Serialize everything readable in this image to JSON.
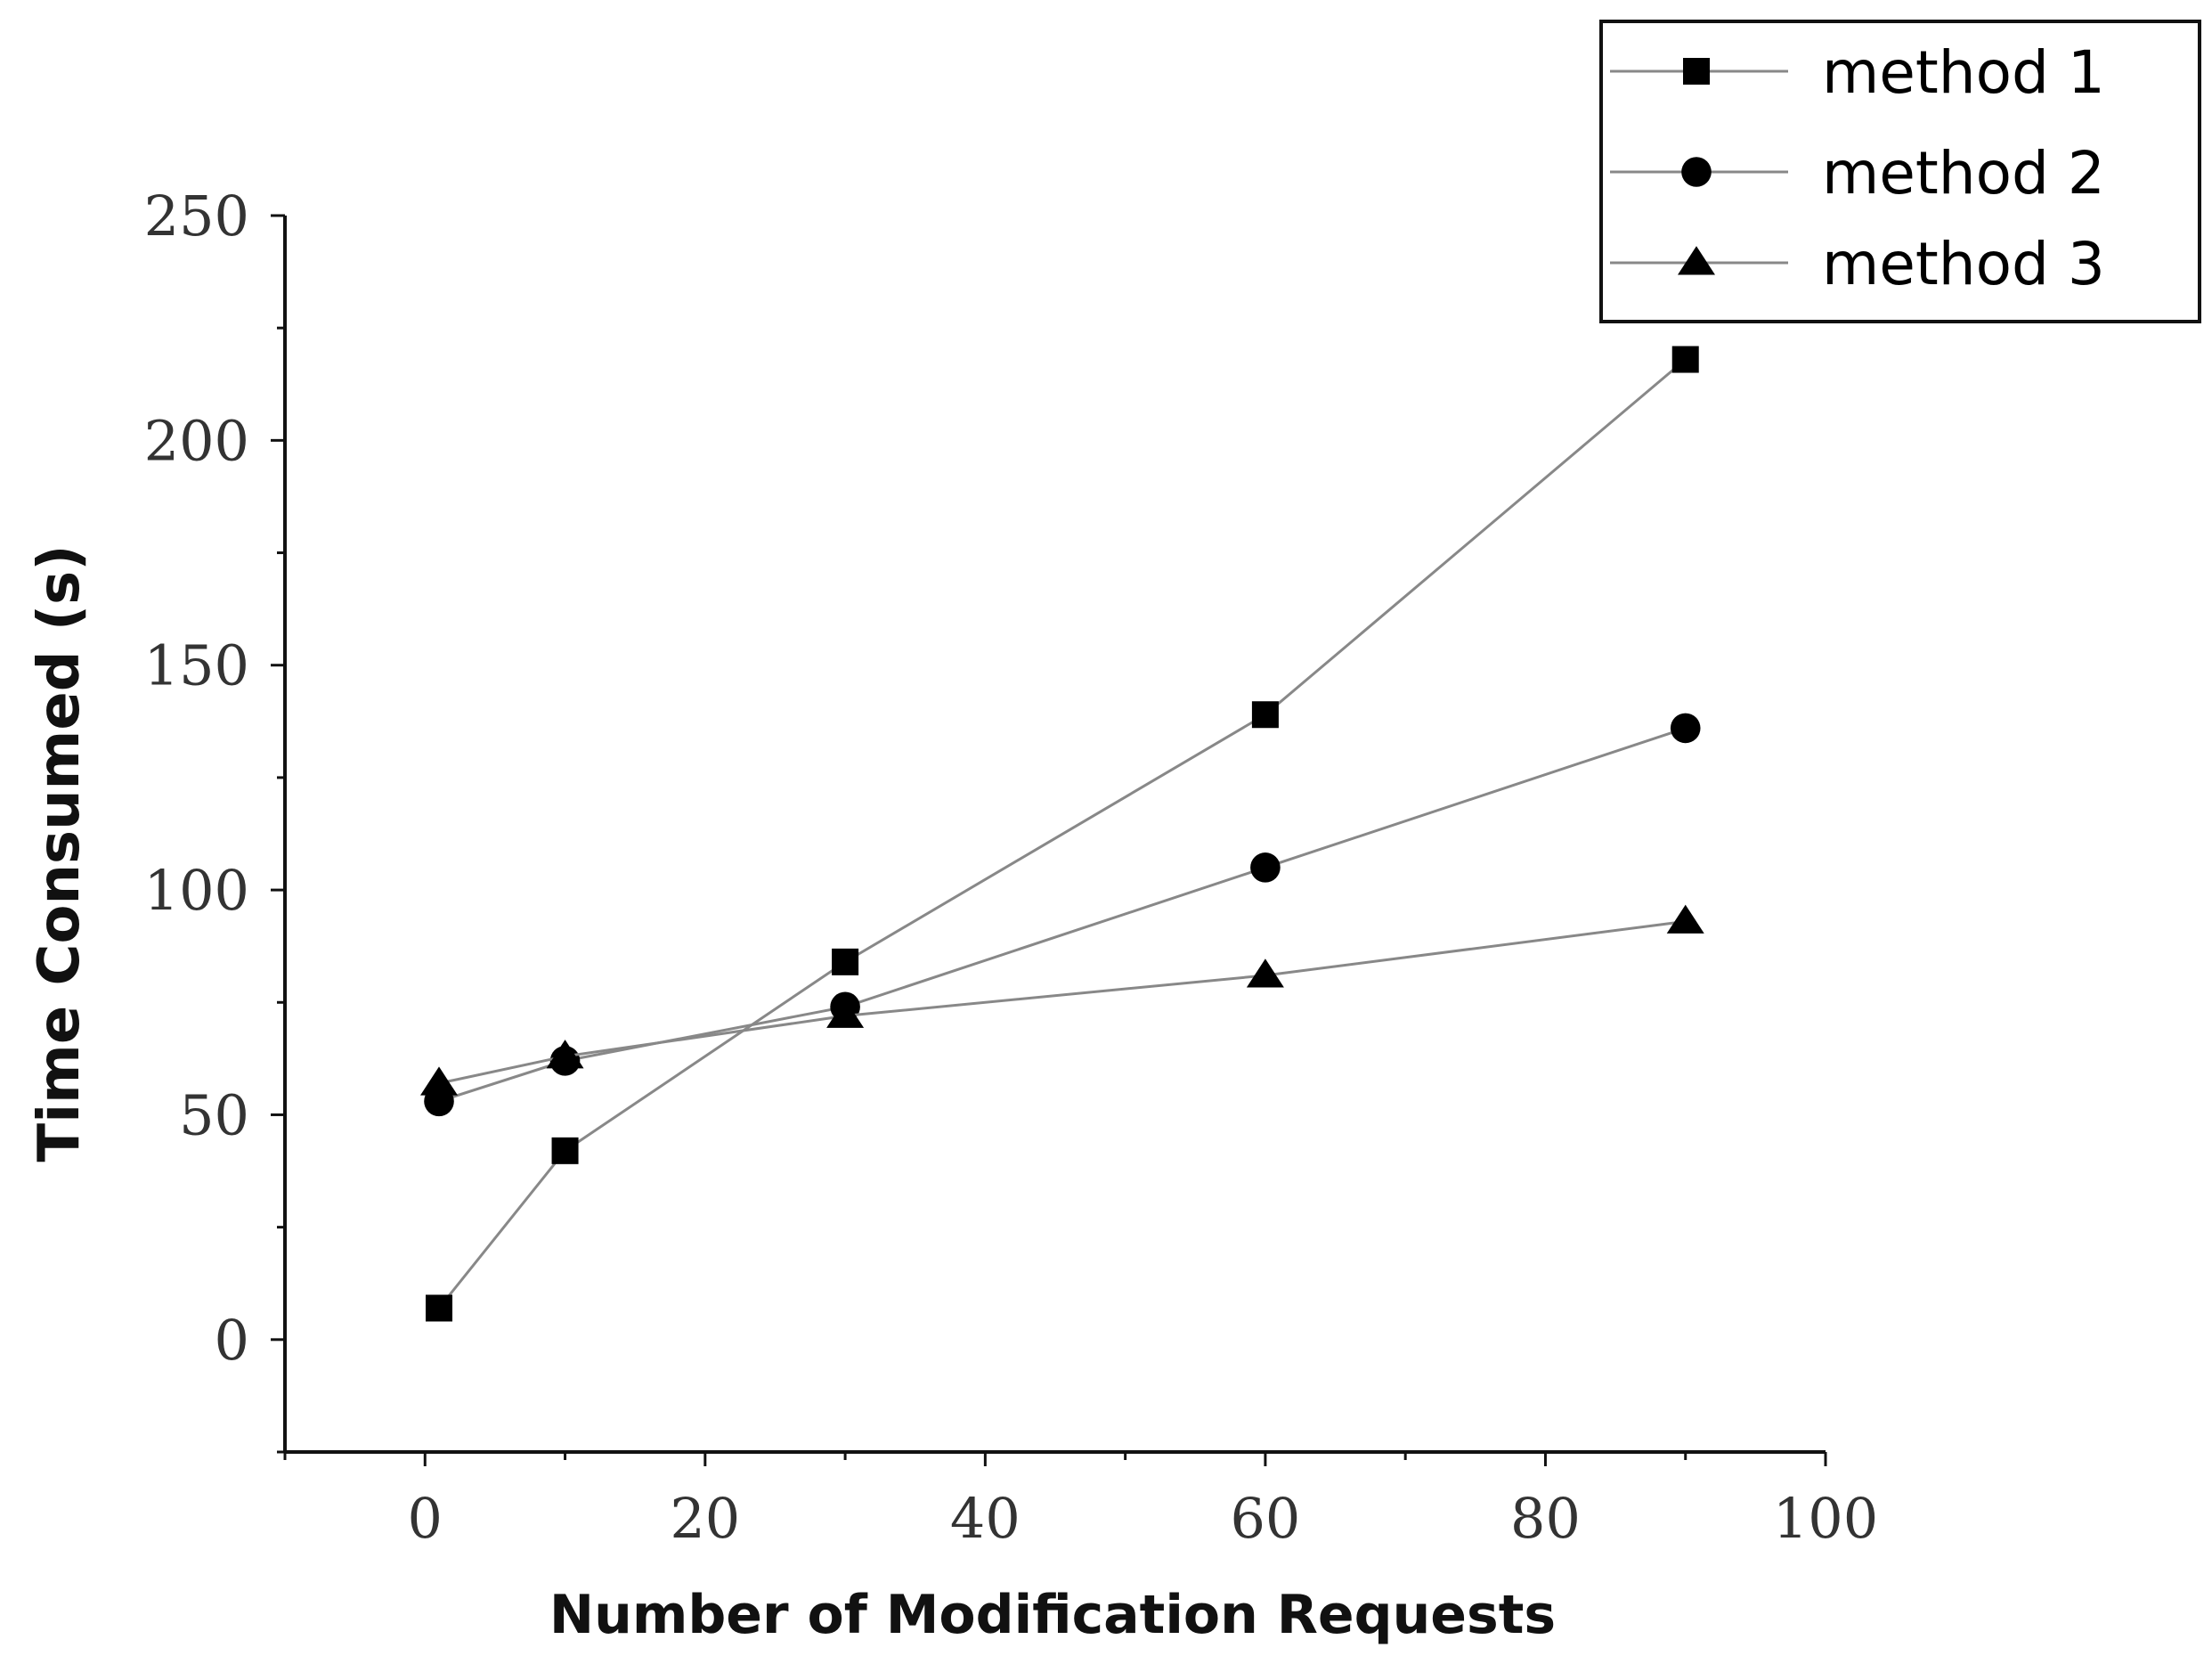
{
  "chart_data": {
    "type": "line",
    "title": "",
    "xlabel": "Number of Modification Requests",
    "ylabel": "Time Consumed (s)",
    "xlim": [
      -10,
      100
    ],
    "ylim": [
      -25,
      250
    ],
    "x_ticks": [
      0,
      20,
      40,
      60,
      80,
      100
    ],
    "x_tick_labels": [
      "0",
      "20",
      "40",
      "60",
      "80",
      "100"
    ],
    "y_ticks": [
      0,
      50,
      100,
      150,
      200,
      250
    ],
    "y_tick_labels": [
      "0",
      "50",
      "100",
      "150",
      "200",
      "250"
    ],
    "grid": false,
    "legend_position": "top-right",
    "x": [
      1,
      10,
      30,
      60,
      90
    ],
    "series": [
      {
        "name": "method 1",
        "marker": "square",
        "values": [
          7,
          42,
          84,
          139,
          218
        ]
      },
      {
        "name": "method 2",
        "marker": "circle",
        "values": [
          53,
          62,
          74,
          105,
          136
        ]
      },
      {
        "name": "method 3",
        "marker": "triangle",
        "values": [
          57,
          63,
          72,
          81,
          93
        ]
      }
    ],
    "colors": {
      "line": "#888888",
      "marker": "#000000",
      "axis": "#111111"
    }
  }
}
